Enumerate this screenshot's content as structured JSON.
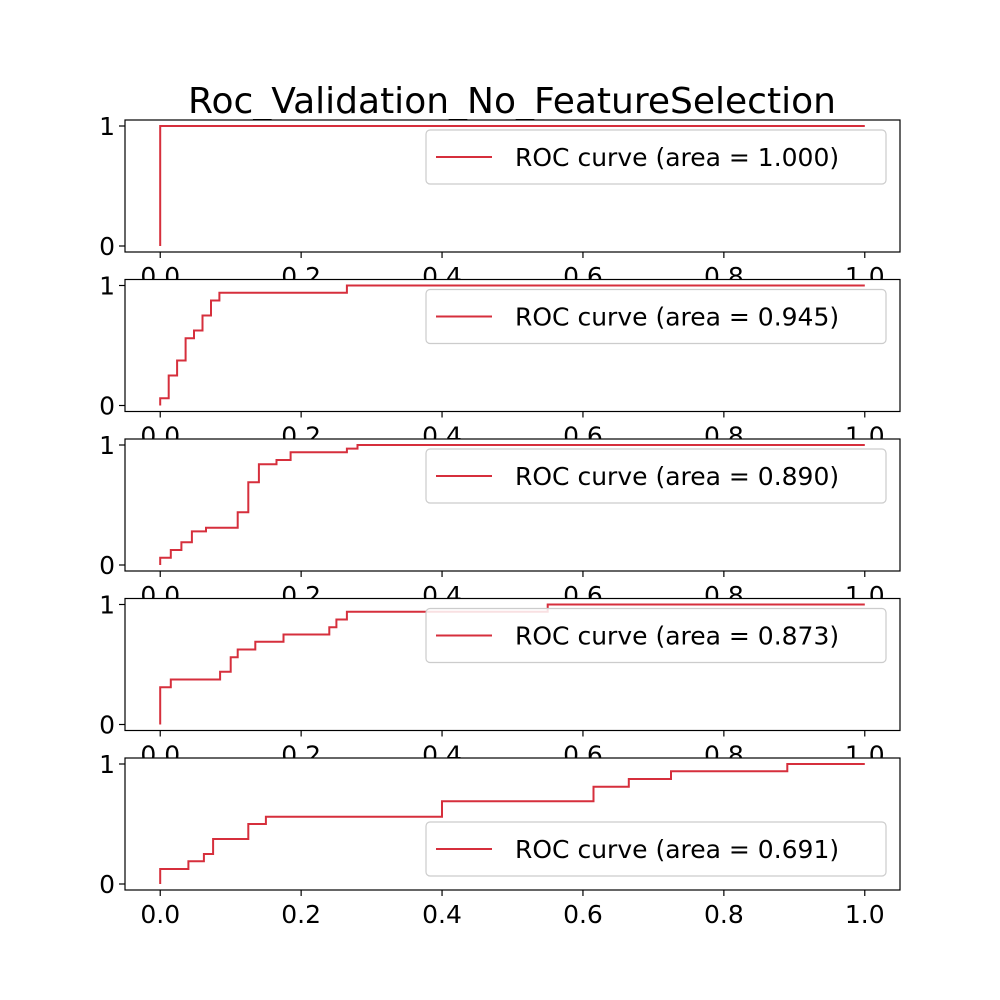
{
  "figure": {
    "title": "Roc_Validation_No_FeatureSelection"
  },
  "colors": {
    "curve": "#d62f3c",
    "axis": "#000000",
    "legend_border": "#cccccc"
  },
  "chart_data": [
    {
      "type": "line",
      "legend": "ROC curve (area = 1.000)",
      "legend_loc": "upper-right",
      "xlim": [
        -0.05,
        1.05
      ],
      "ylim": [
        -0.05,
        1.05
      ],
      "x_ticks": [
        "0.0",
        "0.2",
        "0.4",
        "0.6",
        "0.8",
        "1.0"
      ],
      "y_ticks": [
        "0",
        "1"
      ],
      "x": [
        0,
        0,
        1
      ],
      "y": [
        0,
        1,
        1
      ]
    },
    {
      "type": "line",
      "legend": "ROC curve (area = 0.945)",
      "legend_loc": "upper-right",
      "xlim": [
        -0.05,
        1.05
      ],
      "ylim": [
        -0.05,
        1.05
      ],
      "x_ticks": [
        "0.0",
        "0.2",
        "0.4",
        "0.6",
        "0.8",
        "1.0"
      ],
      "y_ticks": [
        "0",
        "1"
      ],
      "x": [
        0,
        0,
        0.012,
        0.012,
        0.024,
        0.024,
        0.036,
        0.036,
        0.048,
        0.048,
        0.06,
        0.06,
        0.072,
        0.072,
        0.084,
        0.084,
        0.265,
        0.265,
        1.0
      ],
      "y": [
        0,
        0.06,
        0.06,
        0.25,
        0.25,
        0.375,
        0.375,
        0.56,
        0.56,
        0.625,
        0.625,
        0.75,
        0.75,
        0.875,
        0.875,
        0.94,
        0.94,
        1.0,
        1.0
      ]
    },
    {
      "type": "line",
      "legend": "ROC curve (area = 0.890)",
      "legend_loc": "upper-right",
      "xlim": [
        -0.05,
        1.05
      ],
      "ylim": [
        -0.05,
        1.05
      ],
      "x_ticks": [
        "0.0",
        "0.2",
        "0.4",
        "0.6",
        "0.8",
        "1.0"
      ],
      "y_ticks": [
        "0",
        "1"
      ],
      "x": [
        0,
        0,
        0.015,
        0.015,
        0.03,
        0.03,
        0.045,
        0.045,
        0.065,
        0.065,
        0.08,
        0.08,
        0.11,
        0.11,
        0.125,
        0.125,
        0.14,
        0.14,
        0.165,
        0.165,
        0.185,
        0.185,
        0.265,
        0.265,
        0.28,
        0.28,
        1.0
      ],
      "y": [
        0,
        0.06,
        0.06,
        0.125,
        0.125,
        0.19,
        0.19,
        0.28,
        0.28,
        0.31,
        0.31,
        0.31,
        0.31,
        0.44,
        0.44,
        0.69,
        0.69,
        0.84,
        0.84,
        0.875,
        0.875,
        0.94,
        0.94,
        0.97,
        0.97,
        1.0,
        1.0
      ]
    },
    {
      "type": "line",
      "legend": "ROC curve (area = 0.873)",
      "legend_loc": "upper-right",
      "xlim": [
        -0.05,
        1.05
      ],
      "ylim": [
        -0.05,
        1.05
      ],
      "x_ticks": [
        "0.0",
        "0.2",
        "0.4",
        "0.6",
        "0.8",
        "1.0"
      ],
      "y_ticks": [
        "0",
        "1"
      ],
      "x": [
        0,
        0,
        0.015,
        0.015,
        0.085,
        0.085,
        0.1,
        0.1,
        0.11,
        0.11,
        0.135,
        0.135,
        0.175,
        0.175,
        0.24,
        0.24,
        0.25,
        0.25,
        0.265,
        0.265,
        0.55,
        0.55,
        1.0
      ],
      "y": [
        0,
        0.31,
        0.31,
        0.375,
        0.375,
        0.44,
        0.44,
        0.56,
        0.56,
        0.625,
        0.625,
        0.69,
        0.69,
        0.75,
        0.75,
        0.81,
        0.81,
        0.875,
        0.875,
        0.94,
        0.94,
        1.0,
        1.0
      ]
    },
    {
      "type": "line",
      "legend": "ROC curve (area = 0.691)",
      "legend_loc": "lower-right",
      "xlim": [
        -0.05,
        1.05
      ],
      "ylim": [
        -0.05,
        1.05
      ],
      "x_ticks": [
        "0.0",
        "0.2",
        "0.4",
        "0.6",
        "0.8",
        "1.0"
      ],
      "y_ticks": [
        "0",
        "1"
      ],
      "x": [
        0,
        0,
        0.04,
        0.04,
        0.062,
        0.062,
        0.075,
        0.075,
        0.125,
        0.125,
        0.15,
        0.15,
        0.4,
        0.4,
        0.615,
        0.615,
        0.665,
        0.665,
        0.725,
        0.725,
        0.89,
        0.89,
        1.0
      ],
      "y": [
        0,
        0.125,
        0.125,
        0.19,
        0.19,
        0.25,
        0.25,
        0.375,
        0.375,
        0.5,
        0.5,
        0.56,
        0.56,
        0.69,
        0.69,
        0.81,
        0.81,
        0.875,
        0.875,
        0.94,
        0.94,
        1.0,
        1.0
      ]
    }
  ]
}
